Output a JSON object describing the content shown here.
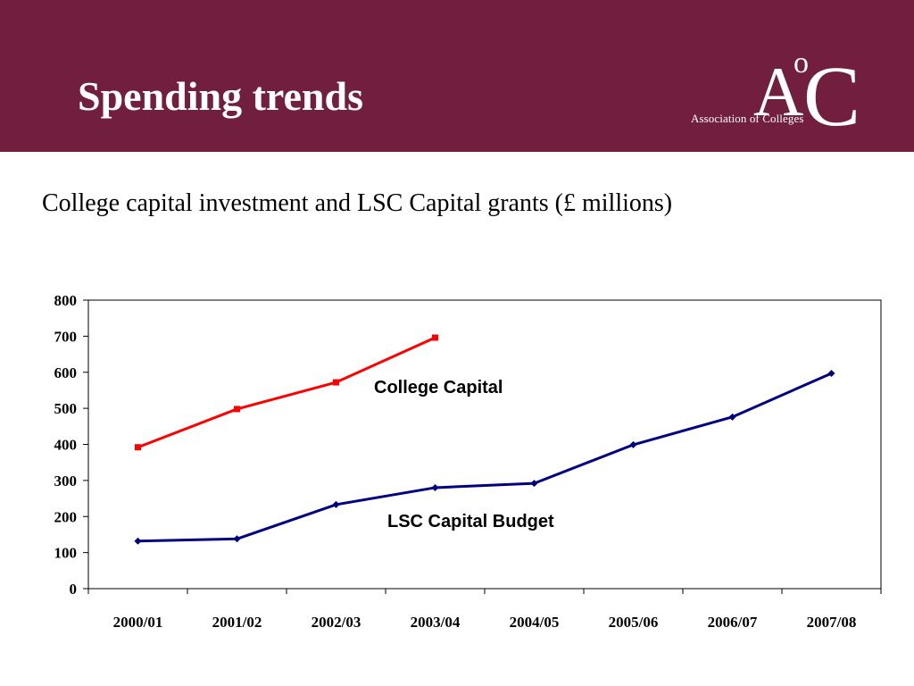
{
  "header": {
    "title": "Spending trends",
    "logo": {
      "mark_a": "A",
      "mark_o": "o",
      "mark_c": "C",
      "name": "Association of Colleges"
    },
    "background_color": "#721f3f"
  },
  "subtitle": "College capital investment and LSC Capital grants (£ millions)",
  "chart_data": {
    "type": "line",
    "title": "",
    "xlabel": "",
    "ylabel": "",
    "categories": [
      "2000/01",
      "2001/02",
      "2002/03",
      "2003/04",
      "2004/05",
      "2005/06",
      "2006/07",
      "2007/08"
    ],
    "ylim": [
      0,
      800
    ],
    "yticks": [
      "0",
      "100",
      "200",
      "300",
      "400",
      "500",
      "600",
      "700",
      "800"
    ],
    "grid": false,
    "legend": "none",
    "series": [
      {
        "name": "College Capital",
        "color": "#ff0000",
        "marker": "square",
        "values": [
          392,
          498,
          572,
          696,
          null,
          null,
          null,
          null
        ]
      },
      {
        "name": "LSC Capital Budget",
        "color": "#000080",
        "marker": "diamond",
        "values": [
          132,
          138,
          233,
          280,
          292,
          399,
          476,
          597
        ]
      }
    ]
  }
}
